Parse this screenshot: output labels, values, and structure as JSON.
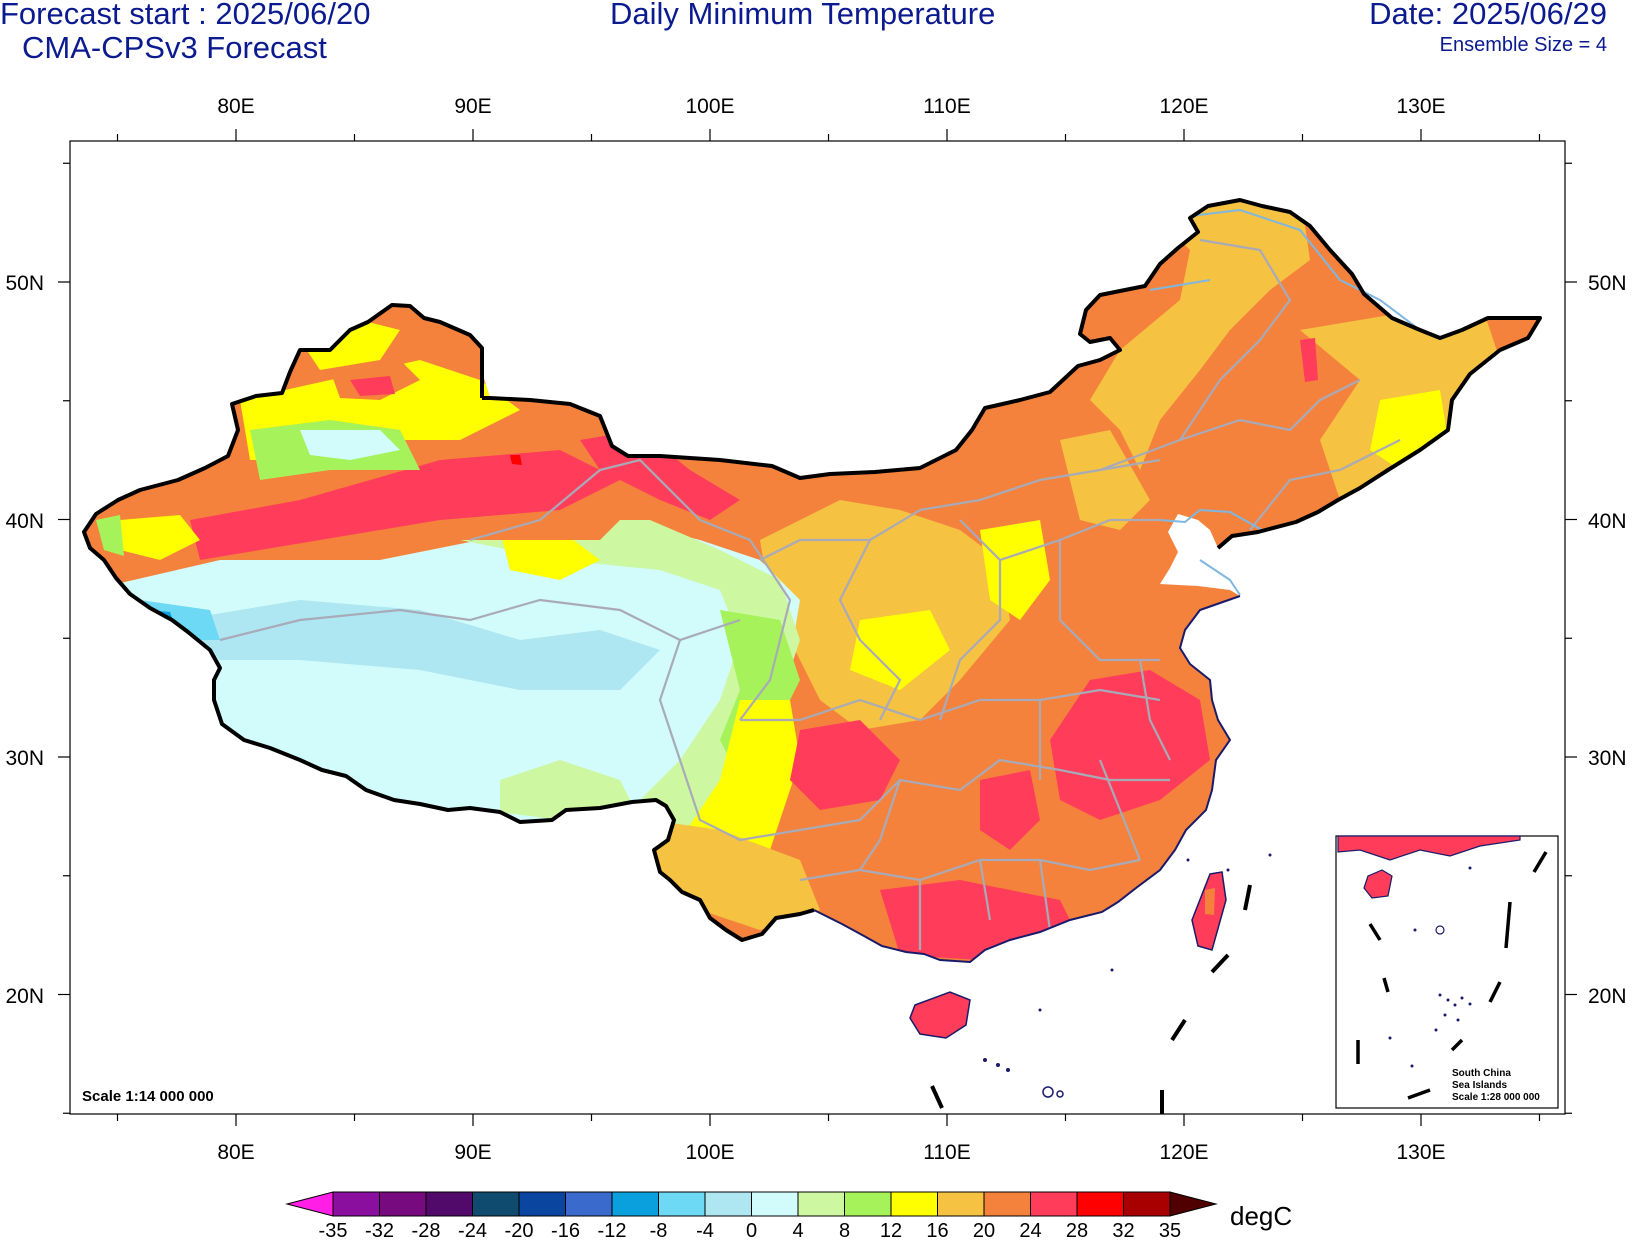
{
  "header": {
    "forecast_start": "Forecast start : 2025/06/20",
    "model": "CMA-CPSv3 Forecast",
    "title": "Daily Minimum Temperature",
    "date": "Date: 2025/06/29",
    "ensemble": "Ensemble Size = 4"
  },
  "map": {
    "lon_ticks": [
      "80E",
      "90E",
      "100E",
      "110E",
      "120E",
      "130E"
    ],
    "lat_ticks": [
      "50N",
      "40N",
      "30N",
      "20N"
    ],
    "scale_main": "Scale 1:14 000 000",
    "inset": {
      "line1": "South China",
      "line2": "Sea Islands",
      "line3": "Scale 1:28 000 000"
    }
  },
  "colorbar": {
    "unit": "degC",
    "labels": [
      "-35",
      "-32",
      "-28",
      "-24",
      "-20",
      "-16",
      "-12",
      "-8",
      "-4",
      "0",
      "4",
      "8",
      "12",
      "16",
      "20",
      "24",
      "28",
      "32",
      "35"
    ],
    "colors": [
      "#8a0f9e",
      "#780a80",
      "#520a6a",
      "#0e4b6e",
      "#0a45a0",
      "#3a6acc",
      "#0aa0dd",
      "#6dd9f5",
      "#aee6f2",
      "#d2fbfb",
      "#cdf7a0",
      "#a6f25a",
      "#ffff00",
      "#f5c242",
      "#f5823c",
      "#ff3c5a",
      "#ff0000",
      "#a80000"
    ],
    "low_arrow_color": "#ff1ee6",
    "high_arrow_color": "#500000"
  }
}
